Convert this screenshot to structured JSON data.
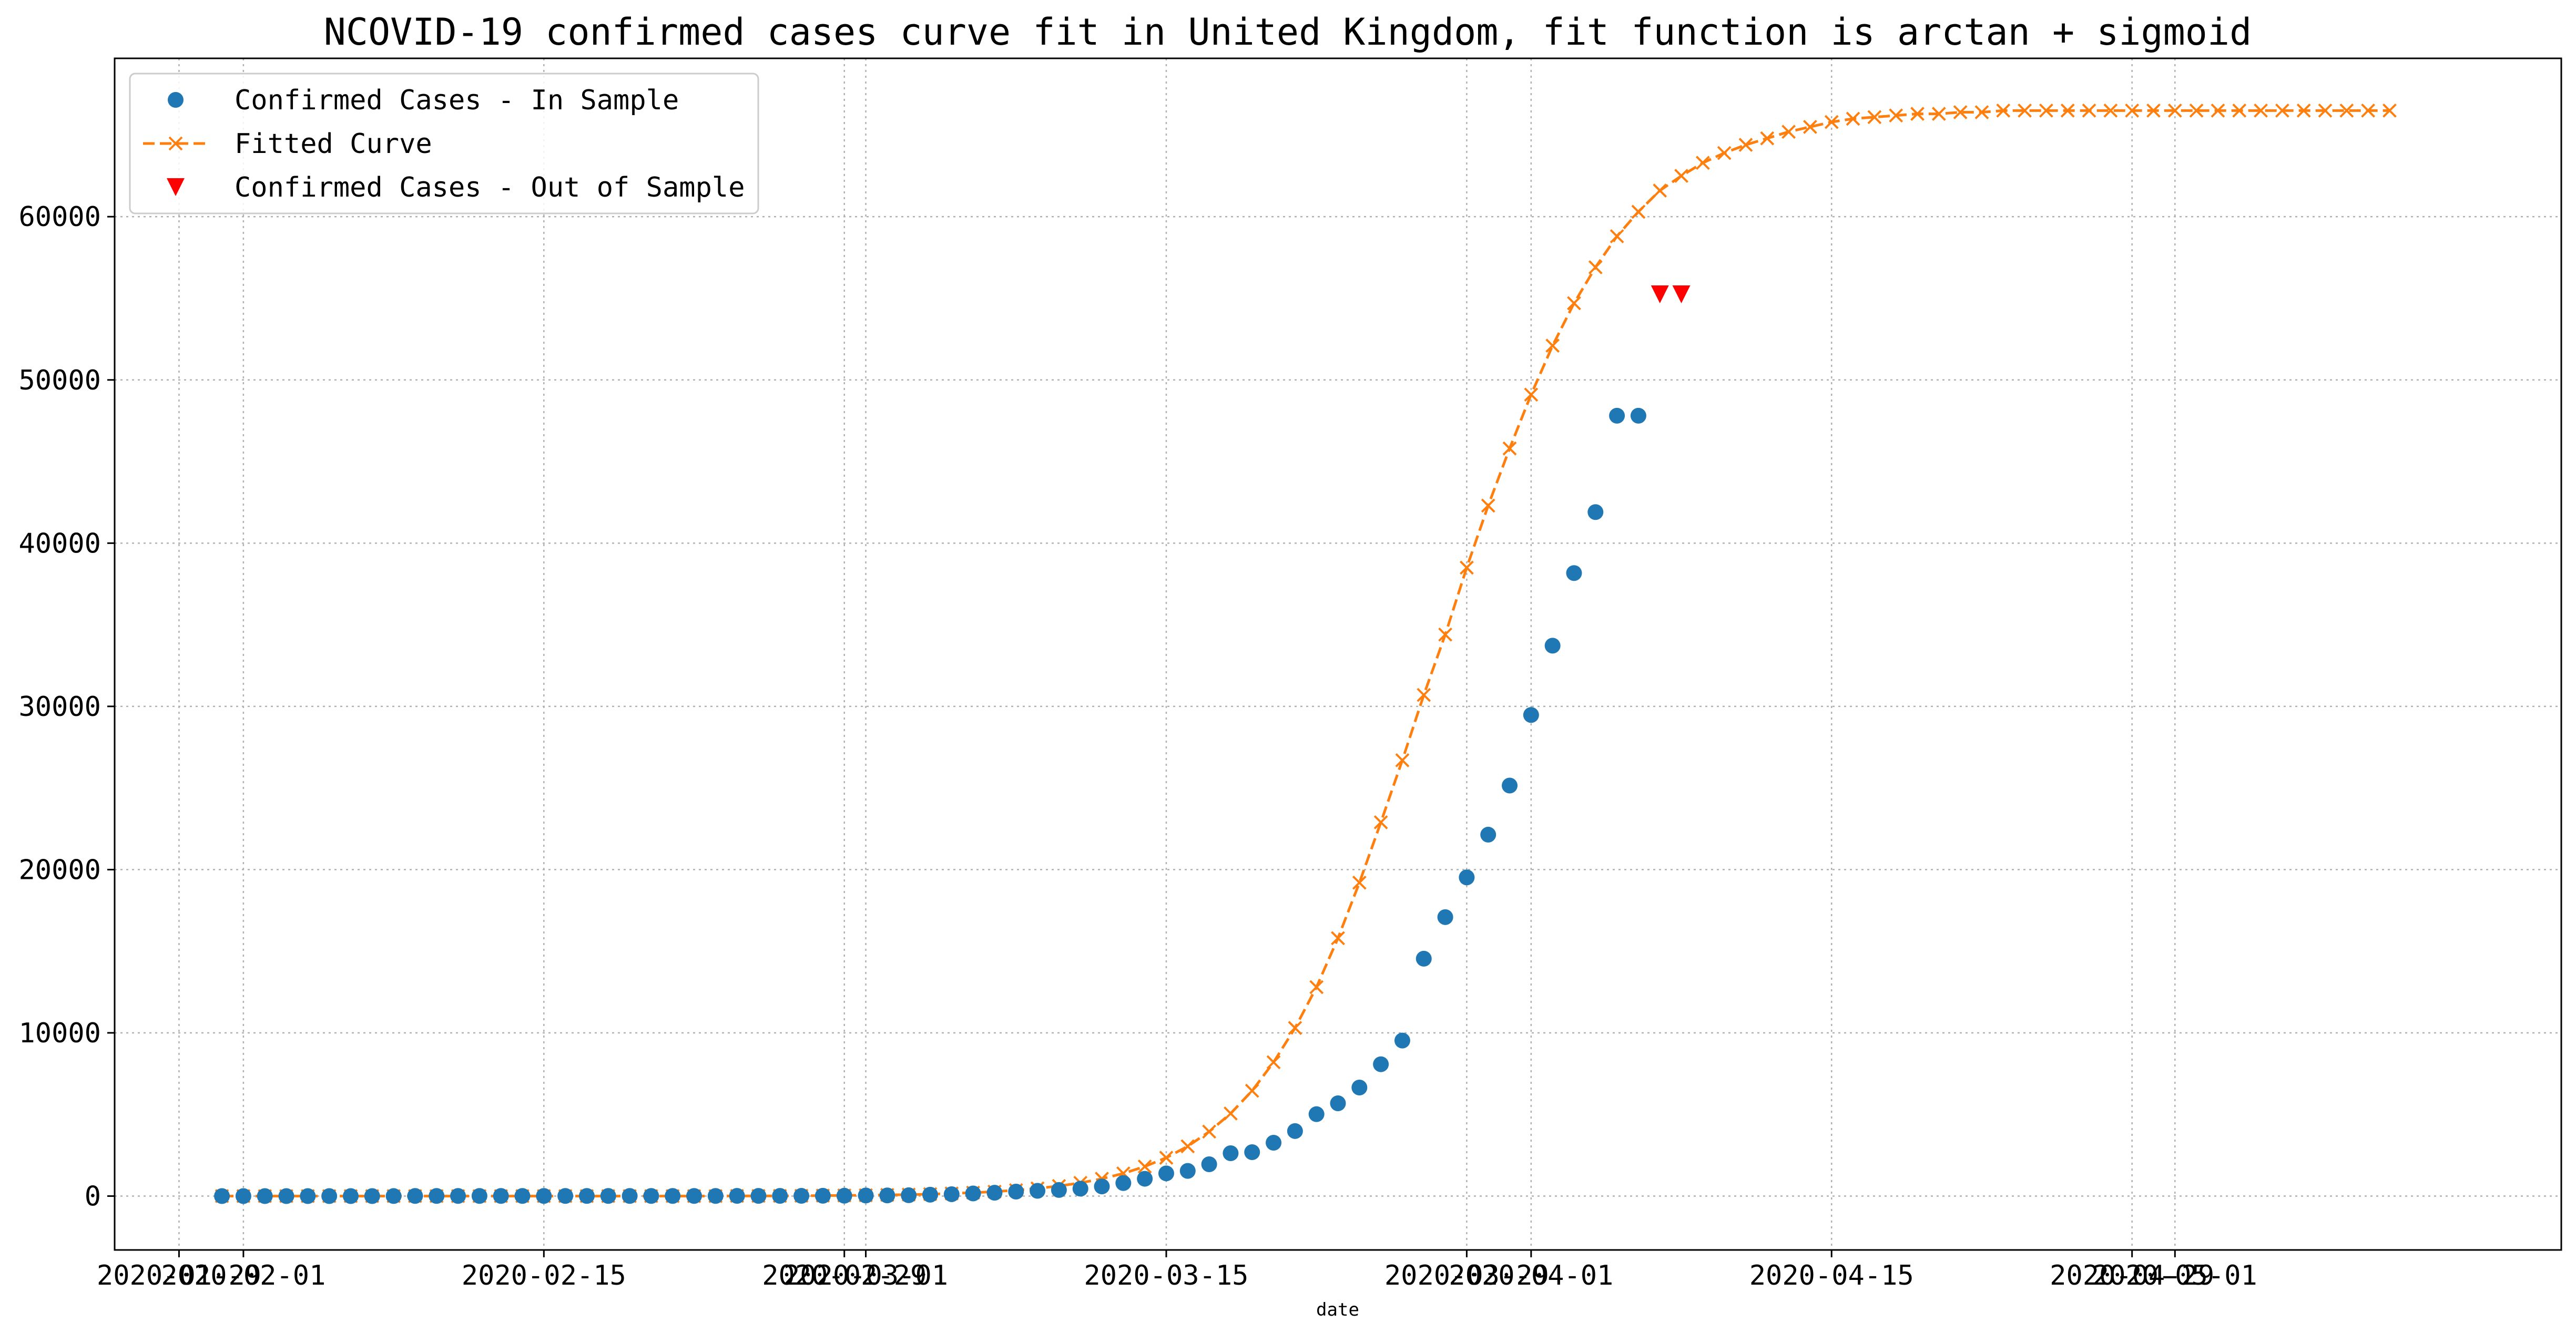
{
  "chart_data": {
    "type": "line",
    "title": "NCOVID-19 confirmed cases curve fit in United Kingdom, fit function is arctan + sigmoid",
    "xlabel": "date",
    "ylabel": "",
    "grid": true,
    "legend_position": "top-left",
    "x_axis": {
      "type": "date",
      "range": [
        "2020-01-26",
        "2020-05-19"
      ],
      "tick_labels": [
        "2020-01-29",
        "2020-02-01",
        "2020-02-15",
        "2020-02-29",
        "2020-03-01",
        "2020-03-15",
        "2020-03-29",
        "2020-04-01",
        "2020-04-15",
        "2020-04-29",
        "2020-05-01"
      ]
    },
    "y_axis": {
      "range": [
        -3300,
        69700
      ],
      "tick_labels": [
        "0",
        "10000",
        "20000",
        "30000",
        "40000",
        "50000",
        "60000"
      ]
    },
    "series": [
      {
        "name": "Confirmed Cases - In Sample",
        "color": "#1f77b4",
        "marker": "circle",
        "start_date": "2020-01-31",
        "values": [
          2,
          2,
          2,
          2,
          2,
          2,
          2,
          2,
          3,
          8,
          8,
          9,
          9,
          9,
          9,
          9,
          9,
          9,
          9,
          9,
          9,
          9,
          9,
          9,
          13,
          13,
          13,
          15,
          20,
          23,
          36,
          40,
          51,
          85,
          115,
          163,
          206,
          273,
          321,
          373,
          456,
          590,
          797,
          1061,
          1391,
          1543,
          1950,
          2626,
          2689,
          3269,
          3983,
          5018,
          5683,
          6650,
          8077,
          9529,
          14543,
          17089,
          19522,
          22141,
          25150,
          29474,
          33718,
          38168,
          41903,
          47806,
          47806
        ]
      },
      {
        "name": "Fitted Curve",
        "color": "#ff7f0e",
        "line_style": "dashed",
        "marker": "x",
        "start_date": "2020-01-31",
        "values": [
          0,
          0,
          0,
          0,
          0,
          0,
          0,
          0,
          0,
          0,
          0,
          0,
          0,
          0,
          0,
          0,
          0,
          0,
          0,
          0,
          0,
          0,
          0,
          0,
          10,
          10,
          10,
          20,
          30,
          40,
          50,
          70,
          90,
          120,
          160,
          210,
          270,
          360,
          470,
          620,
          810,
          1060,
          1390,
          1810,
          2350,
          3050,
          3950,
          5060,
          6450,
          8200,
          10300,
          12800,
          15800,
          19200,
          22900,
          26700,
          30700,
          34400,
          38500,
          42300,
          45800,
          49100,
          52100,
          54700,
          56900,
          58800,
          60300,
          61600,
          62500,
          63300,
          63900,
          64400,
          64800,
          65200,
          65500,
          65800,
          66000,
          66100,
          66200,
          66300,
          66300,
          66400,
          66400,
          66500,
          66500,
          66500,
          66500,
          66500,
          66500,
          66500,
          66500,
          66500,
          66500,
          66500,
          66500,
          66500,
          66500,
          66500,
          66500,
          66500,
          66500,
          66500
        ]
      },
      {
        "name": "Confirmed Cases - Out of Sample",
        "color": "#ff0000",
        "marker": "triangle-down",
        "x": [
          "2020-04-07",
          "2020-04-08"
        ],
        "values": [
          55242,
          55242
        ]
      }
    ]
  }
}
